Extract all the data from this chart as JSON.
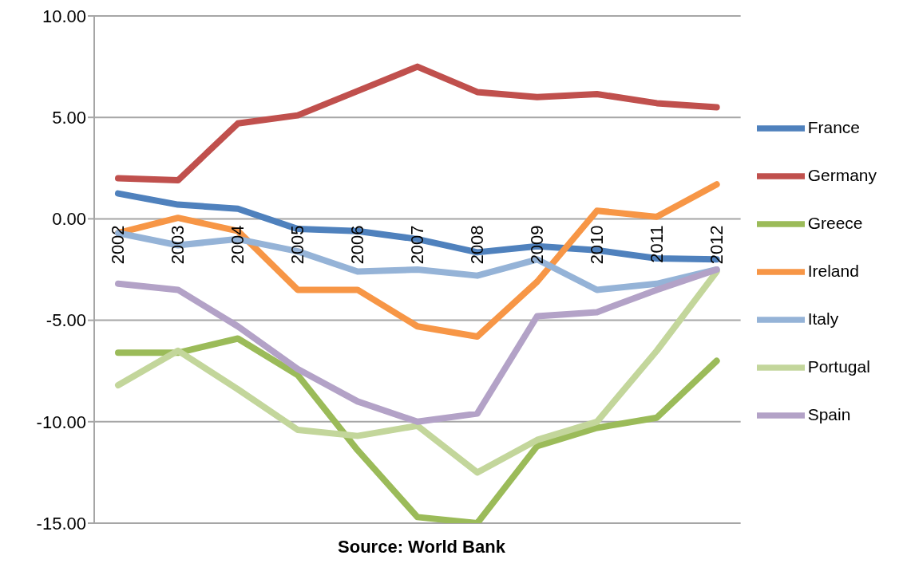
{
  "chart_data": {
    "type": "line",
    "categories": [
      "2002",
      "2003",
      "2004",
      "2005",
      "2006",
      "2007",
      "2008",
      "2009",
      "2010",
      "2011",
      "2012"
    ],
    "series": [
      {
        "name": "France",
        "color": "#4f81bd",
        "values": [
          1.25,
          0.7,
          0.5,
          -0.5,
          -0.6,
          -1.0,
          -1.65,
          -1.35,
          -1.55,
          -1.95,
          -2.0
        ]
      },
      {
        "name": "Germany",
        "color": "#c0504d",
        "values": [
          2.0,
          1.9,
          4.7,
          5.1,
          6.3,
          7.5,
          6.25,
          6.0,
          6.15,
          5.7,
          5.5
        ]
      },
      {
        "name": "Greece",
        "color": "#9bbb59",
        "values": [
          -6.6,
          -6.6,
          -5.9,
          -7.7,
          -11.4,
          -14.7,
          -15.0,
          -11.2,
          -10.3,
          -9.8,
          -7.0
        ]
      },
      {
        "name": "Ireland",
        "color": "#f79646",
        "values": [
          -0.7,
          0.05,
          -0.6,
          -3.5,
          -3.5,
          -5.3,
          -5.8,
          -3.1,
          0.4,
          0.1,
          1.7
        ]
      },
      {
        "name": "Italy",
        "color": "#95b3d7",
        "values": [
          -0.7,
          -1.3,
          -1.0,
          -1.6,
          -2.6,
          -2.5,
          -2.8,
          -2.0,
          -3.5,
          -3.2,
          -2.5
        ]
      },
      {
        "name": "Portugal",
        "color": "#c3d69b",
        "values": [
          -8.2,
          -6.5,
          -8.4,
          -10.4,
          -10.7,
          -10.2,
          -12.5,
          -10.9,
          -10.0,
          -6.5,
          -2.6
        ]
      },
      {
        "name": "Spain",
        "color": "#b3a2c7",
        "values": [
          -3.2,
          -3.5,
          -5.3,
          -7.4,
          -9.0,
          -10.0,
          -9.6,
          -4.8,
          -4.6,
          -3.5,
          -2.5
        ]
      }
    ],
    "ylim": [
      -15,
      10
    ],
    "yticks": [
      {
        "value": -15,
        "label": "-15.00"
      },
      {
        "value": -10,
        "label": "-10.00"
      },
      {
        "value": -5,
        "label": "-5.00"
      },
      {
        "value": 0,
        "label": "0.00"
      },
      {
        "value": 5,
        "label": "5.00"
      },
      {
        "value": 10,
        "label": "10.00"
      }
    ],
    "grid": "y",
    "legend": "right",
    "marker": "none",
    "line_style": "solid",
    "annotations": [
      "Source: World Bank"
    ]
  }
}
